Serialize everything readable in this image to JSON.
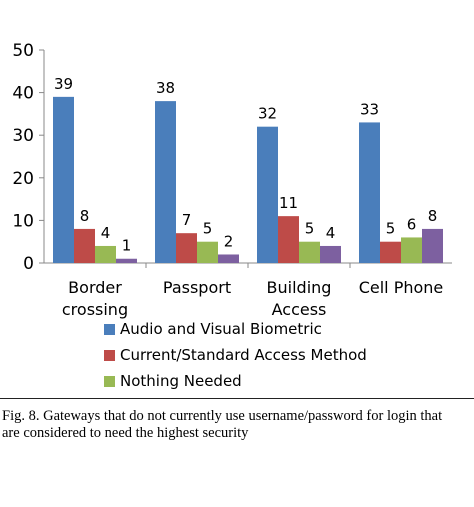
{
  "chart_data": {
    "type": "bar",
    "categories": [
      [
        "Border",
        "crossing"
      ],
      [
        "Passport"
      ],
      [
        "Building",
        "Access"
      ],
      [
        "Cell Phone"
      ]
    ],
    "series": [
      {
        "name": "Audio and Visual Biometric",
        "color": "#4a7ebb",
        "values": [
          39,
          38,
          32,
          33
        ]
      },
      {
        "name": "Current/Standard Access Method",
        "color": "#be4b48",
        "values": [
          8,
          7,
          11,
          5
        ]
      },
      {
        "name": "Nothing Needed",
        "color": "#98b954",
        "values": [
          4,
          5,
          5,
          6
        ]
      },
      {
        "name": "",
        "color": "#7d60a0",
        "values": [
          1,
          2,
          4,
          8
        ]
      }
    ],
    "ylim": [
      0,
      50
    ],
    "yticks": [
      0,
      10,
      20,
      30,
      40,
      50
    ],
    "grid": false,
    "legend_position": "bottom"
  },
  "caption": {
    "line1": "Fig. 8.  Gateways that do not currently use username/password for login that",
    "line2": "are considered to need the highest security"
  }
}
